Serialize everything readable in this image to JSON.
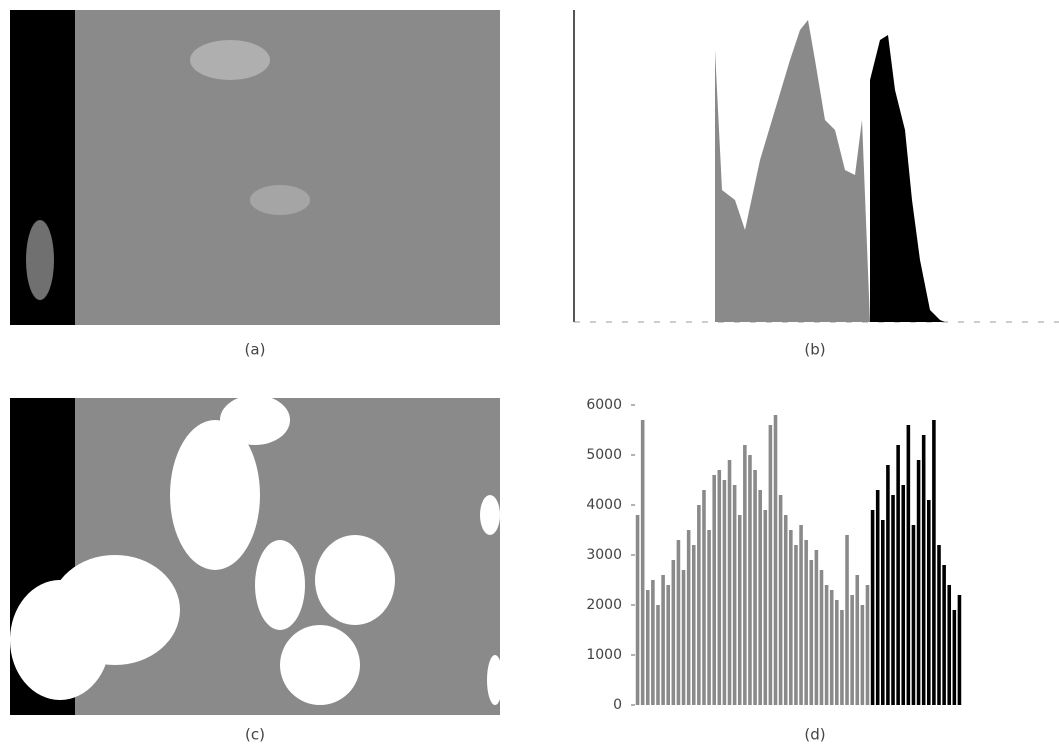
{
  "panels": {
    "a": {
      "label": "(a)"
    },
    "b": {
      "label": "(b)"
    },
    "c": {
      "label": "(c)"
    },
    "d": {
      "label": "(d)"
    }
  },
  "chart_data": {
    "type": "bar",
    "ylim": [
      0,
      6000
    ],
    "yticks": [
      0,
      1000,
      2000,
      3000,
      4000,
      5000,
      6000
    ],
    "series": [
      {
        "color": "#8a8a8a",
        "values": [
          3800,
          5700,
          2300,
          2500,
          2000,
          2600,
          2400,
          2900,
          3300,
          2700,
          3500,
          3200,
          4000,
          4300,
          3500,
          4600,
          4700,
          4500,
          4900,
          4400,
          3800,
          5200,
          5000,
          4700,
          4300,
          3900,
          5600,
          5800,
          4200,
          3800,
          3500,
          3200,
          3600,
          3300,
          2900,
          3100,
          2700,
          2400,
          2300,
          2100,
          1900,
          3400,
          2200,
          2600,
          2000,
          2400
        ]
      },
      {
        "color": "#000000",
        "values": [
          3900,
          4300,
          3700,
          4800,
          4200,
          5200,
          4400,
          5600,
          3600,
          4900,
          5400,
          4100,
          5700,
          3200,
          2800,
          2400,
          1900,
          2200
        ]
      }
    ]
  }
}
